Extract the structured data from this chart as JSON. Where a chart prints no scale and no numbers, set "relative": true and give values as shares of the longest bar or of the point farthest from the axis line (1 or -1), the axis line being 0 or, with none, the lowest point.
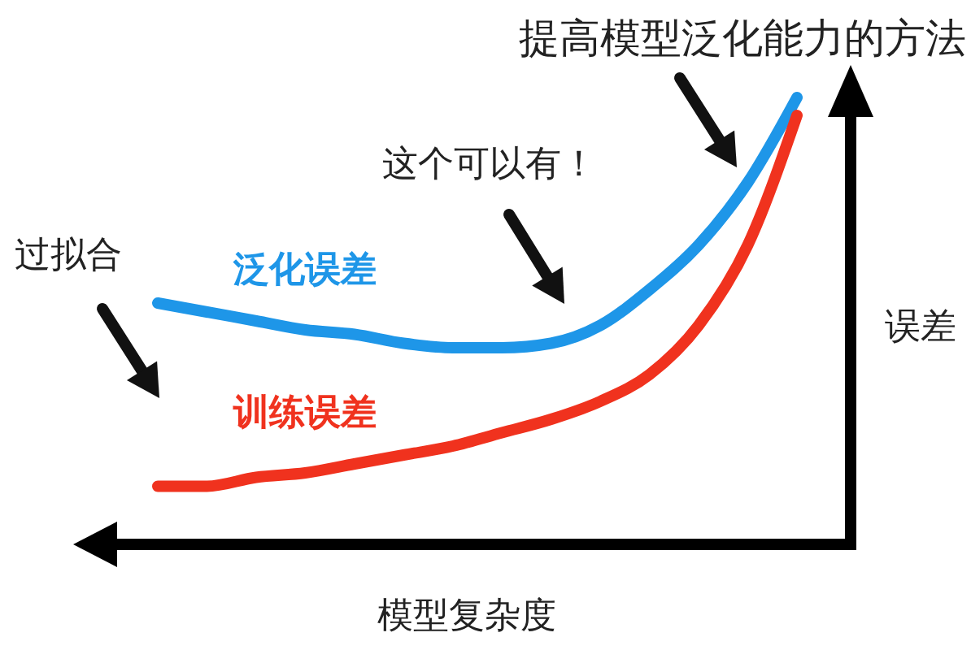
{
  "chart_data": {
    "type": "line",
    "title": "提高模型泛化能力的方法",
    "xlabel": "模型复杂度",
    "ylabel": "误差",
    "annotations": [
      "过拟合",
      "这个可以有！"
    ],
    "categories": [
      null,
      null,
      null,
      null,
      null,
      null,
      null,
      null,
      null,
      null,
      null,
      null,
      null,
      null
    ],
    "relative": true,
    "series": [
      {
        "name": "泛化误差",
        "color": "#1e96e8",
        "values": [
          0.54,
          0.52,
          0.5,
          0.48,
          0.47,
          0.45,
          0.44,
          0.44,
          0.45,
          0.49,
          0.57,
          0.67,
          0.81,
          1
        ]
      },
      {
        "name": "训练误差",
        "color": "#f0321e",
        "values": [
          0.13,
          0.13,
          0.15,
          0.16,
          0.18,
          0.2,
          0.22,
          0.25,
          0.28,
          0.32,
          0.38,
          0.49,
          0.67,
          0.96
        ]
      }
    ]
  }
}
